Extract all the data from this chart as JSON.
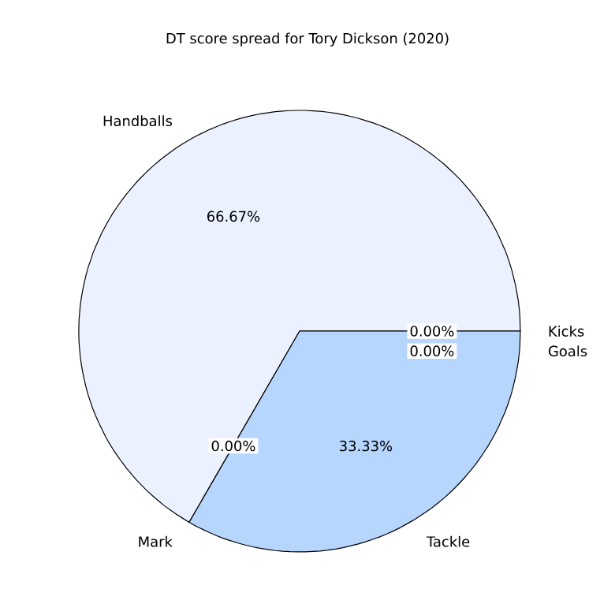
{
  "chart_data": {
    "type": "pie",
    "title": "DT score spread for Tory Dickson (2020)",
    "categories": [
      "Handballs",
      "Mark",
      "Tackle",
      "Kicks",
      "Goals"
    ],
    "values": [
      66.67,
      0,
      33.33,
      0,
      0
    ],
    "value_labels": [
      "66.67%",
      "0.00%",
      "33.33%",
      "0.00%",
      "0.00%"
    ],
    "colors": [
      "#ebf1fe",
      "#d3e5fd",
      "#b6d6fe",
      "#9ac8fd",
      "#7fb8fc"
    ]
  }
}
